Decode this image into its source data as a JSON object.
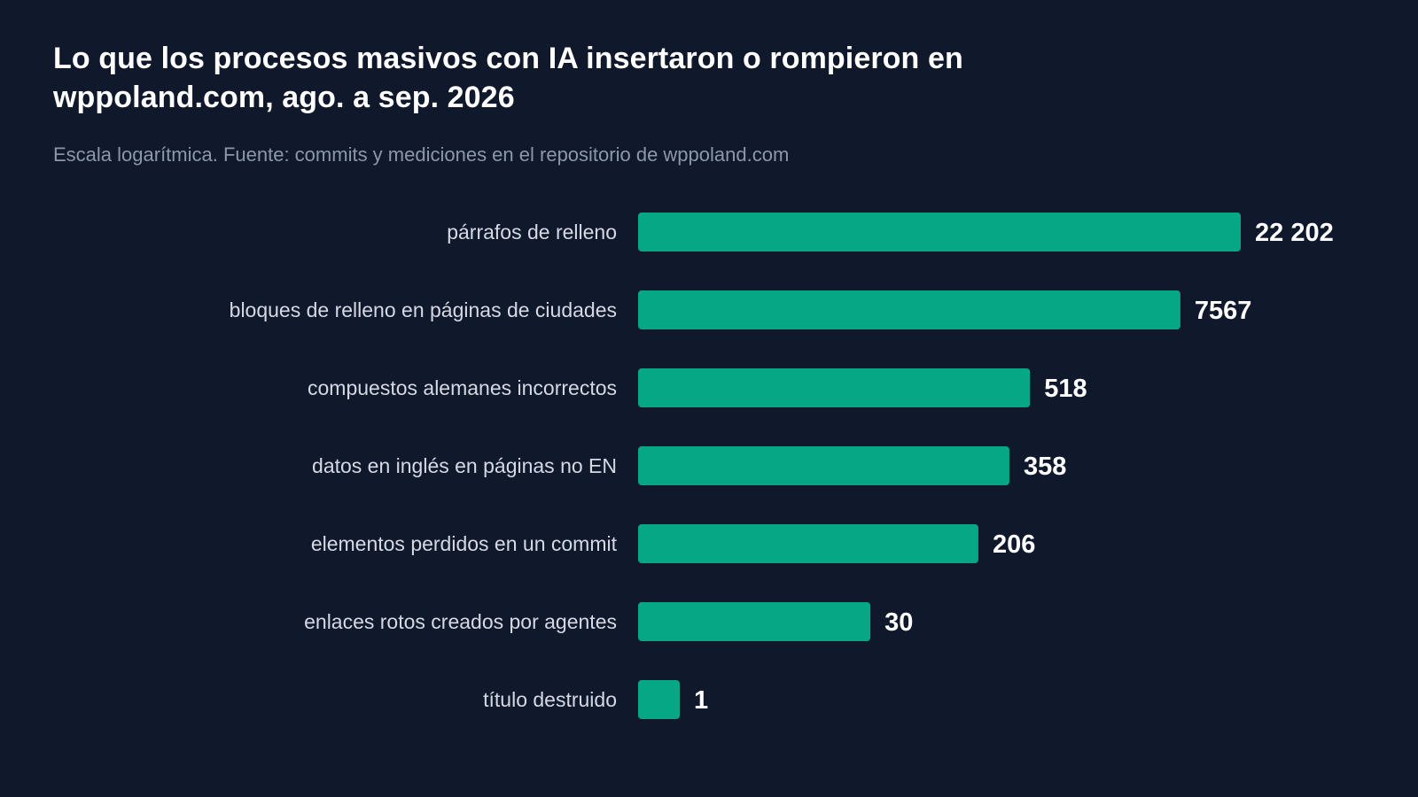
{
  "chart_data": {
    "type": "bar",
    "orientation": "horizontal",
    "title": "Lo que los procesos masivos con IA insertaron o rompieron en wppoland.com, ago. a sep. 2026",
    "subtitle": "Escala logarítmica. Fuente: commits y mediciones en el repositorio de wppoland.com",
    "scale": "log",
    "grid": false,
    "bar_color": "#05a784",
    "categories": [
      "párrafos de relleno",
      "bloques de relleno en páginas de ciudades",
      "compuestos alemanes incorrectos",
      "datos en inglés en páginas no EN",
      "elementos perdidos en un commit",
      "enlaces rotos creados por agentes",
      "título destruido"
    ],
    "values": [
      22202,
      7567,
      518,
      358,
      206,
      30,
      1
    ],
    "value_labels": [
      "22 202",
      "7567",
      "518",
      "358",
      "206",
      "30",
      "1"
    ]
  }
}
